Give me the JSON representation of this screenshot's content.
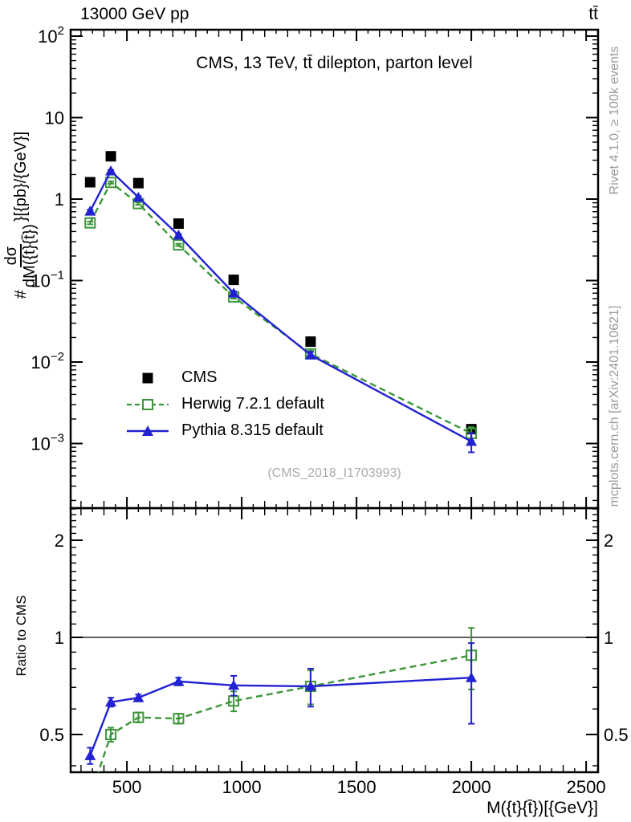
{
  "header": {
    "beam": "13000 GeV pp",
    "process": "tt̄"
  },
  "main_panel": {
    "title": "CMS, 13 TeV, tt̄ dilepton, parton level",
    "watermark": "(CMS_2018_I1703993)",
    "ylabel": {
      "prefix": "#",
      "numerator": "dσ",
      "denominator": "dM({t}{t̄})",
      "suffix": "}[{pb}/{GeV}]"
    },
    "yticks": [
      {
        "v": 100,
        "base": "10",
        "exp": "2"
      },
      {
        "v": 10,
        "base": "10",
        "exp": ""
      },
      {
        "v": 1,
        "base": "1",
        "exp": ""
      },
      {
        "v": 0.1,
        "base": "10",
        "exp": "−1"
      },
      {
        "v": 0.01,
        "base": "10",
        "exp": "−2"
      },
      {
        "v": 0.001,
        "base": "10",
        "exp": "−3"
      }
    ]
  },
  "ratio_panel": {
    "ylabel": "Ratio to CMS",
    "yticks": [
      {
        "v": 2,
        "label": "2"
      },
      {
        "v": 1,
        "label": "1"
      },
      {
        "v": 0.5,
        "label": "0.5"
      }
    ]
  },
  "xaxis": {
    "label": "M({t}{t̄})[{GeV}]",
    "ticks": [
      {
        "v": 500,
        "label": "500"
      },
      {
        "v": 1000,
        "label": "1000"
      },
      {
        "v": 1500,
        "label": "1500"
      },
      {
        "v": 2000,
        "label": "2000"
      },
      {
        "v": 2500,
        "label": "2500"
      }
    ]
  },
  "side_notes": {
    "top": "Rivet 4.1.0, ≥ 100k events",
    "bottom": "mcplots.cern.ch [arXiv:2401.10621]"
  },
  "legend": {
    "items": [
      {
        "label": "CMS"
      },
      {
        "label": "Herwig 7.2.1 default"
      },
      {
        "label": "Pythia 8.315 default"
      }
    ]
  },
  "colors": {
    "cms": "#000000",
    "herwig": "#3c9639",
    "pythia": "#2222d2",
    "frame": "#000000",
    "note_gray": "#999999",
    "watermark_gray": "#ababab"
  },
  "chart_data": [
    {
      "type": "line",
      "title": "CMS, 13 TeV, tt̄ dilepton, parton level",
      "xlabel": "M({t}{t̄})[{GeV}]",
      "ylabel": "#dσ/dM({t}{t̄}) [{pb}/{GeV}]",
      "yscale": "log",
      "xlim": [
        255,
        2552
      ],
      "ylim": [
        0.00016,
        120
      ],
      "grid": false,
      "legend_position": "upper-left-inside",
      "x": [
        340,
        430,
        550,
        725,
        965,
        1300,
        2000
      ],
      "series": [
        {
          "name": "CMS",
          "marker": "square-filled",
          "line": "none",
          "color": "#000000",
          "values": [
            1.61,
            3.35,
            1.57,
            0.5,
            0.102,
            0.0178,
            0.0015
          ],
          "yerr": [
            0,
            0,
            0,
            0,
            0,
            0,
            0
          ]
        },
        {
          "name": "Herwig 7.2.1 default",
          "marker": "square-open",
          "line": "dashed",
          "color": "#3c9639",
          "values": [
            0.51,
            1.6,
            0.88,
            0.274,
            0.063,
            0.0126,
            0.00133
          ],
          "yerr": [
            0.02,
            0.05,
            0.03,
            0.009,
            0.003,
            0.0011,
            0.00026
          ]
        },
        {
          "name": "Pythia 8.315 default",
          "marker": "triangle-filled",
          "line": "solid",
          "color": "#2222d2",
          "values": [
            0.71,
            2.21,
            1.05,
            0.36,
            0.07,
            0.0122,
            0.00106
          ],
          "yerr": [
            0.03,
            0.06,
            0.035,
            0.011,
            0.0035,
            0.0011,
            0.00028
          ]
        }
      ]
    },
    {
      "type": "line",
      "title": "",
      "xlabel": "M({t}{t̄})[{GeV}]",
      "ylabel": "Ratio to CMS",
      "yscale": "log",
      "xlim": [
        255,
        2552
      ],
      "ylim": [
        0.382,
        2.52
      ],
      "reference_line": 1,
      "x": [
        340,
        430,
        550,
        725,
        965,
        1300,
        2000
      ],
      "series": [
        {
          "name": "Herwig 7.2.1 default",
          "marker": "square-open",
          "line": "dashed",
          "color": "#3c9639",
          "values": [
            0.32,
            0.5,
            0.565,
            0.56,
            0.635,
            0.705,
            0.88
          ],
          "yerr": [
            0.03,
            0.025,
            0.02,
            0.02,
            0.045,
            0.085,
            0.19
          ]
        },
        {
          "name": "Pythia 8.315 default",
          "marker": "triangle-filled",
          "line": "solid",
          "color": "#2222d2",
          "values": [
            0.43,
            0.63,
            0.65,
            0.73,
            0.71,
            0.705,
            0.75
          ],
          "yerr": [
            0.025,
            0.02,
            0.015,
            0.02,
            0.05,
            0.095,
            0.21
          ]
        }
      ]
    }
  ]
}
